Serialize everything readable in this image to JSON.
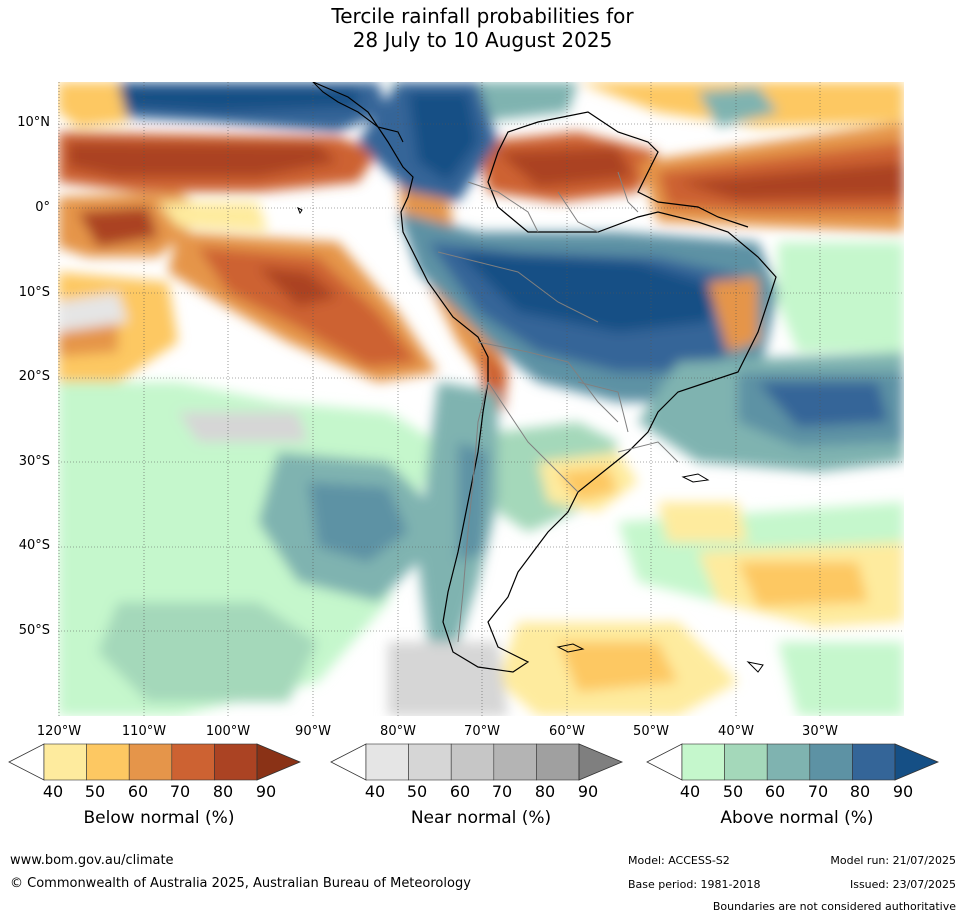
{
  "title": {
    "line1": "Tercile rainfall probabilities for",
    "line2": "28 July to 10 August 2025"
  },
  "map": {
    "region": "South America",
    "lat_labels": [
      "10°N",
      "0°",
      "10°S",
      "20°S",
      "30°S",
      "40°S",
      "50°S"
    ],
    "lon_labels": [
      "120°W",
      "110°W",
      "100°W",
      "90°W",
      "80°W",
      "70°W",
      "60°W",
      "50°W",
      "40°W",
      "30°W"
    ]
  },
  "legends": {
    "below": {
      "title": "Below normal (%)",
      "ticks": [
        "40",
        "50",
        "60",
        "70",
        "80",
        "90"
      ],
      "colors": [
        "#ffffff",
        "#feeb9e",
        "#fdc862",
        "#e5954a",
        "#cd6232",
        "#ab4323",
        "#8a3216"
      ]
    },
    "near": {
      "title": "Near normal (%)",
      "ticks": [
        "40",
        "50",
        "60",
        "70",
        "80",
        "90"
      ],
      "colors": [
        "#ffffff",
        "#e5e5e5",
        "#d6d6d6",
        "#c6c6c6",
        "#b4b4b4",
        "#a0a0a0",
        "#7f7f7f"
      ]
    },
    "above": {
      "title": "Above normal (%)",
      "ticks": [
        "40",
        "50",
        "60",
        "70",
        "80",
        "90"
      ],
      "colors": [
        "#ffffff",
        "#c5f7cc",
        "#a4d8ba",
        "#7fb3b0",
        "#5d92a4",
        "#346598",
        "#154f85"
      ]
    }
  },
  "footer": {
    "website": "www.bom.gov.au/climate",
    "copyright": "© Commonwealth of Australia 2025, Australian Bureau of Meteorology",
    "model": "Model: ACCESS-S2",
    "base_period": "Base period: 1981-2018",
    "model_run": "Model run: 21/07/2025",
    "issued": "Issued: 23/07/2025",
    "disclaimer": "Boundaries are not considered authoritative"
  }
}
